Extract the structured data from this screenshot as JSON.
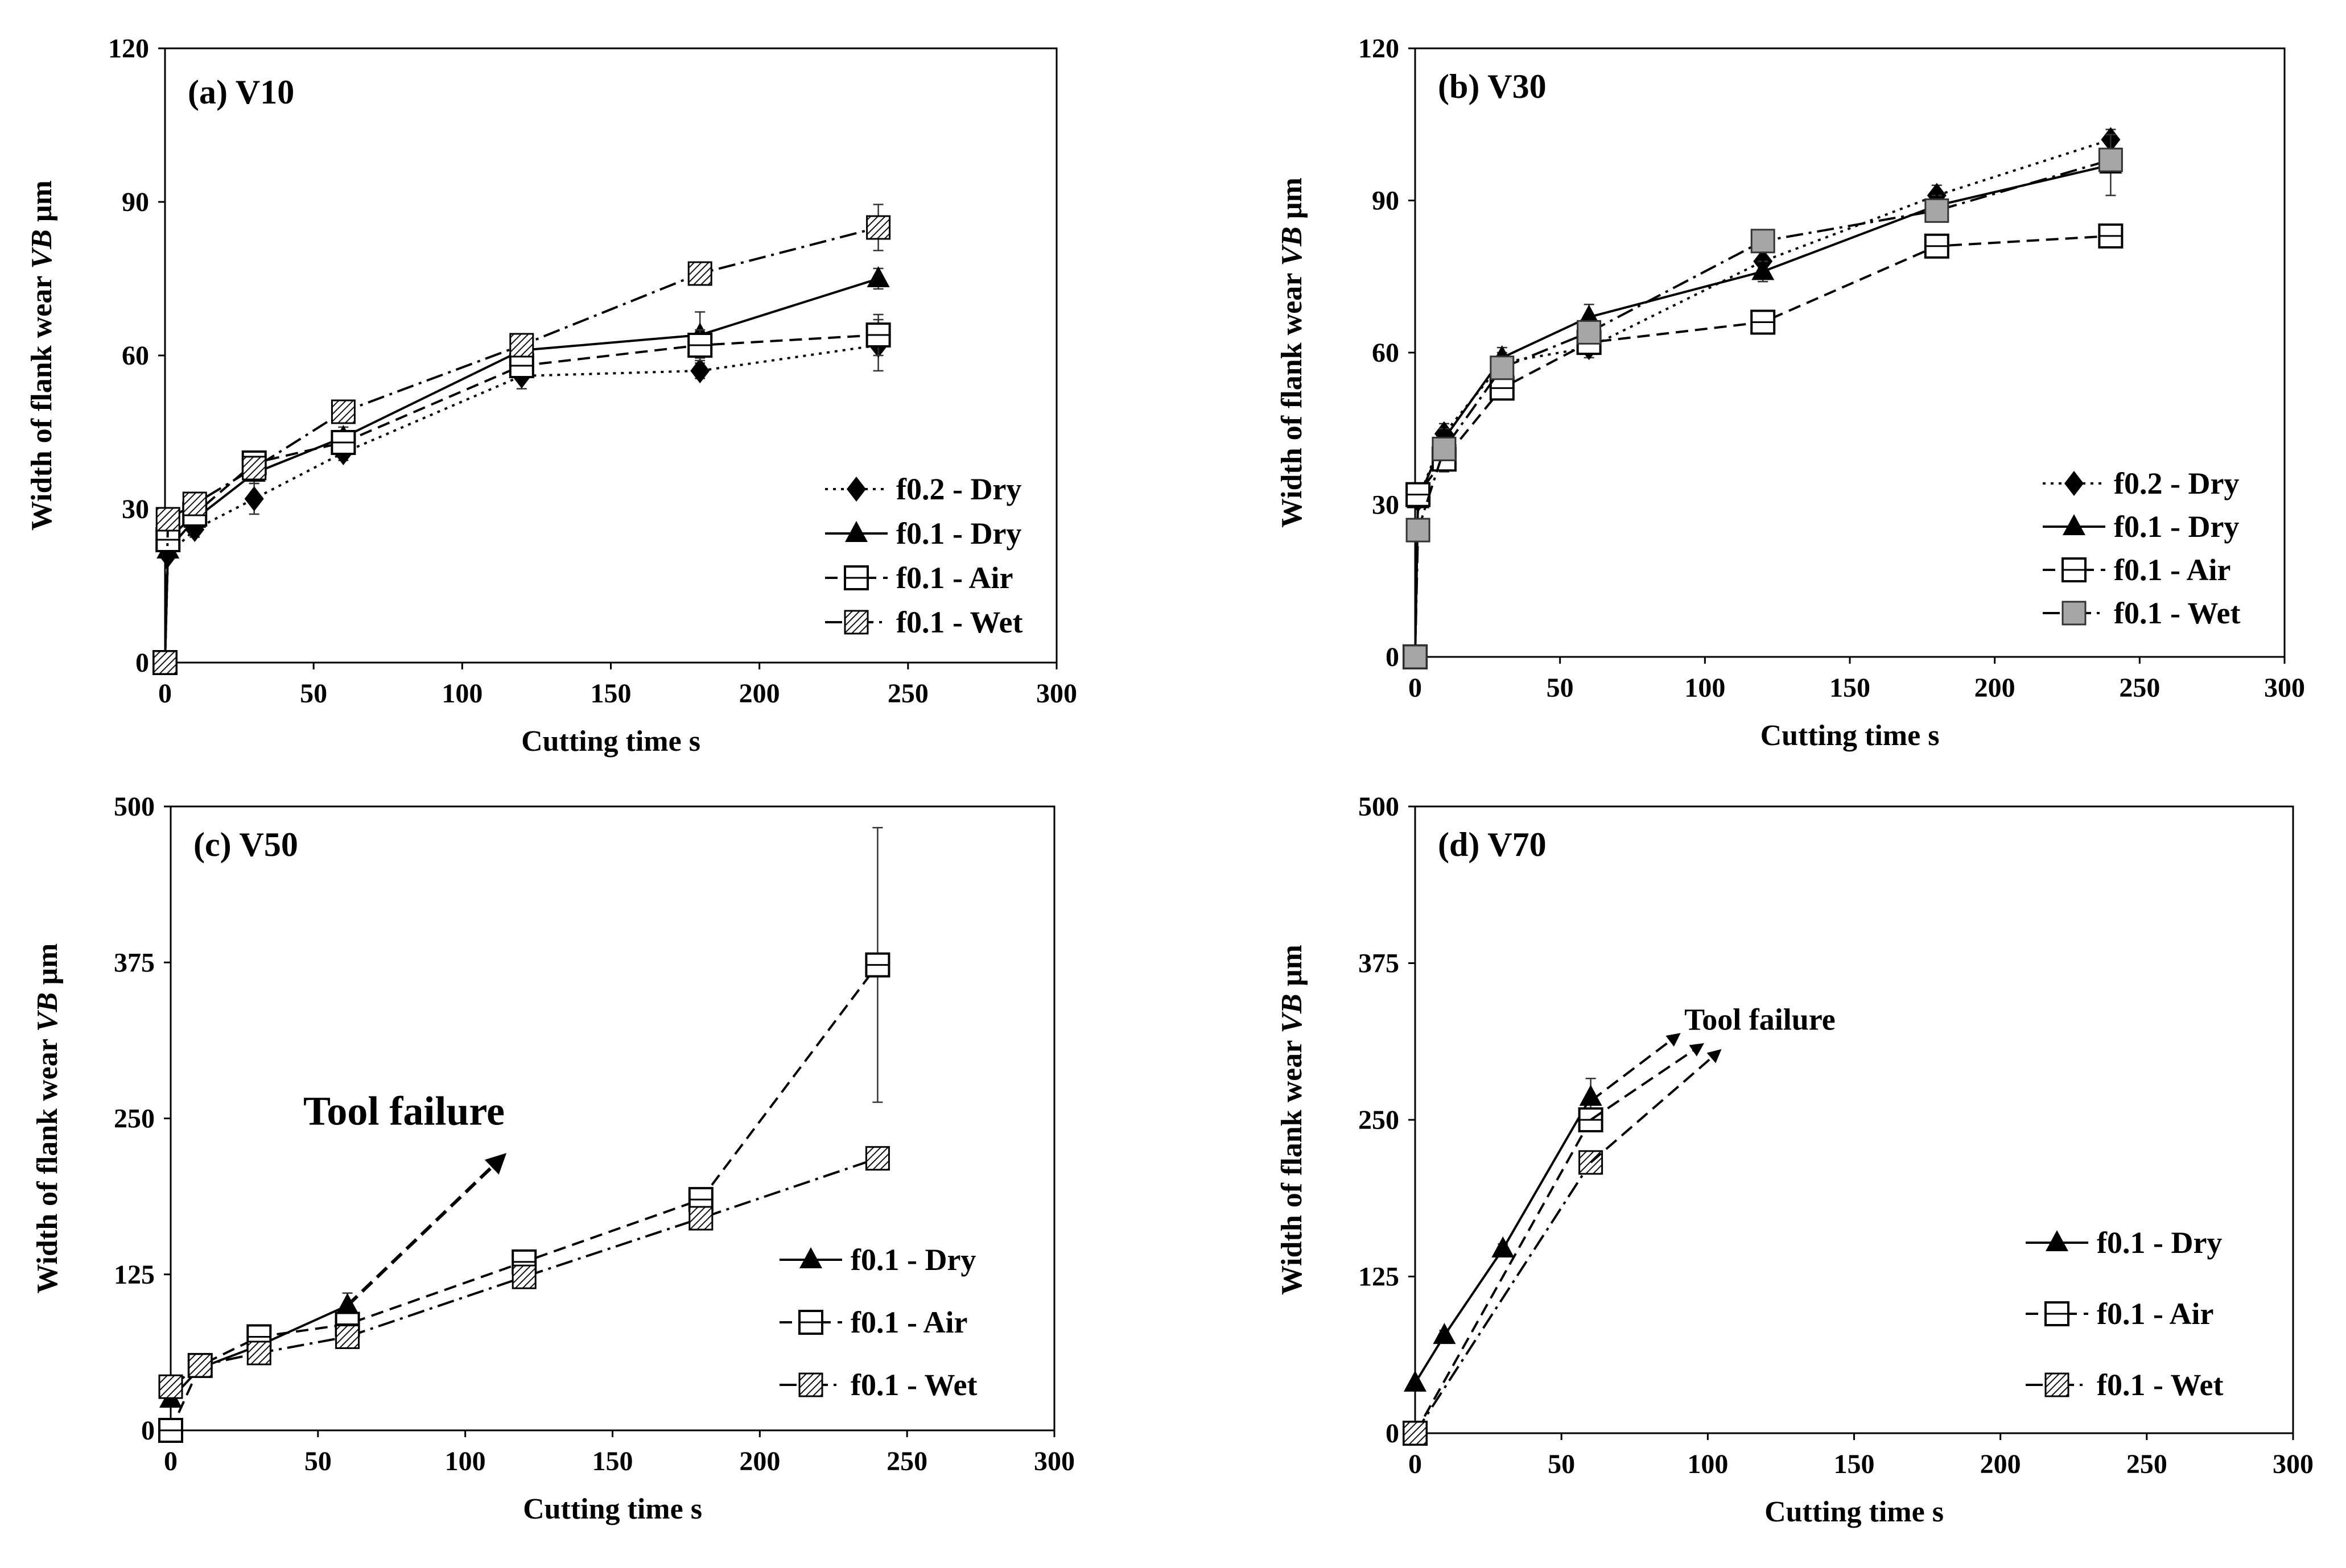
{
  "chart_data": [
    {
      "type": "line",
      "title": "(a) V10",
      "xlabel": "Cutting time s",
      "ylabel_prefix": "Width of flank wear ",
      "ylabel_italic": "VB",
      "ylabel_suffix": " µm",
      "xlim": [
        0,
        300
      ],
      "ylim": [
        0,
        120
      ],
      "xticks": [
        0,
        50,
        100,
        150,
        200,
        250,
        300
      ],
      "yticks": [
        0,
        30,
        60,
        90,
        120
      ],
      "grid": false,
      "legend_position": "right-lower",
      "series": [
        {
          "name": "f0.2 - Dry",
          "marker": "diamond",
          "dash": "dotted",
          "x": [
            0,
            1,
            10,
            30,
            60,
            120,
            180,
            240
          ],
          "y": [
            0,
            21,
            26,
            32,
            41,
            56,
            57,
            62
          ],
          "err": [
            0,
            0,
            1.5,
            3,
            1.5,
            2.5,
            1.5,
            5
          ]
        },
        {
          "name": "f0.1 - Dry",
          "marker": "triangle",
          "dash": "solid",
          "x": [
            0,
            1,
            10,
            30,
            60,
            120,
            180,
            240
          ],
          "y": [
            0,
            22,
            28,
            37,
            44,
            61,
            64,
            75
          ],
          "err": [
            0,
            0,
            1.5,
            2,
            2,
            1.5,
            4.5,
            2
          ]
        },
        {
          "name": "f0.1 - Air",
          "marker": "square-open",
          "dash": "dashed",
          "x": [
            0,
            1,
            10,
            30,
            60,
            120,
            180,
            240
          ],
          "y": [
            0,
            24,
            29,
            39,
            43,
            58,
            62,
            64
          ],
          "err": [
            0,
            0,
            1.5,
            2,
            2,
            1.5,
            3,
            4
          ]
        },
        {
          "name": "f0.1 - Wet",
          "marker": "square-hatched",
          "dash": "dashdot",
          "x": [
            0,
            1,
            10,
            30,
            60,
            120,
            180,
            240
          ],
          "y": [
            0,
            28,
            31,
            38,
            49,
            62,
            76,
            85
          ],
          "err": [
            0,
            0,
            1,
            1.5,
            1.5,
            1.5,
            1.5,
            4.5
          ]
        }
      ]
    },
    {
      "type": "line",
      "title": "(b) V30",
      "xlabel": "Cutting time s",
      "ylabel_prefix": "Width of flank wear ",
      "ylabel_italic": "VB",
      "ylabel_suffix": " µm",
      "xlim": [
        0,
        300
      ],
      "ylim": [
        0,
        120
      ],
      "xticks": [
        0,
        50,
        100,
        150,
        200,
        250,
        300
      ],
      "yticks": [
        0,
        30,
        60,
        90,
        120
      ],
      "grid": false,
      "legend_position": "right-lower",
      "series": [
        {
          "name": "f0.2 - Dry",
          "marker": "diamond",
          "dash": "dotted",
          "x": [
            0,
            1,
            10,
            30,
            60,
            120,
            180,
            240
          ],
          "y": [
            0,
            31,
            44,
            58,
            61,
            78,
            91,
            102
          ],
          "err": [
            0,
            0,
            2,
            2,
            2,
            2,
            2,
            2
          ]
        },
        {
          "name": "f0.1 - Dry",
          "marker": "triangle",
          "dash": "solid",
          "x": [
            0,
            1,
            10,
            30,
            60,
            120,
            180,
            240
          ],
          "y": [
            0,
            31,
            43,
            59,
            67,
            76,
            89,
            97
          ],
          "err": [
            0,
            0,
            2,
            2,
            2.5,
            2,
            2,
            6
          ]
        },
        {
          "name": "f0.1 - Air",
          "marker": "square-open",
          "dash": "dashed",
          "x": [
            0,
            1,
            10,
            30,
            60,
            120,
            180,
            240
          ],
          "y": [
            0,
            32,
            39,
            53,
            62,
            66,
            81,
            83
          ],
          "err": [
            0,
            0,
            2.5,
            2,
            2,
            1.5,
            1.5,
            1.5
          ]
        },
        {
          "name": "f0.1 - Wet",
          "marker": "square-gray",
          "dash": "dashdot",
          "x": [
            0,
            1,
            10,
            30,
            60,
            120,
            180,
            240
          ],
          "y": [
            0,
            25,
            41,
            57,
            64,
            82,
            88,
            98
          ],
          "err": [
            0,
            0,
            2,
            2,
            2,
            2,
            2,
            2
          ]
        }
      ]
    },
    {
      "type": "line",
      "title": "(c) V50",
      "xlabel": "Cutting time s",
      "ylabel_prefix": "Width of flank wear ",
      "ylabel_italic": "VB",
      "ylabel_suffix": " µm",
      "xlim": [
        0,
        300
      ],
      "ylim": [
        0,
        500
      ],
      "xticks": [
        0,
        50,
        100,
        150,
        200,
        250,
        300
      ],
      "yticks": [
        0,
        125,
        250,
        375,
        500
      ],
      "grid": false,
      "legend_position": "right-lower",
      "annotations": [
        {
          "text": "Tool failure",
          "x": 45,
          "y": 245,
          "size": "large",
          "arrows": [
            {
              "from": [
                60,
                100
              ],
              "to": [
                113,
                220
              ]
            }
          ]
        }
      ],
      "series": [
        {
          "name": "f0.1 - Dry",
          "marker": "triangle",
          "dash": "solid",
          "x": [
            0,
            10,
            30,
            60
          ],
          "y": [
            25,
            50,
            68,
            100
          ],
          "err": [
            0,
            4,
            4,
            10
          ]
        },
        {
          "name": "f0.1 - Air",
          "marker": "square-open",
          "dash": "dashed",
          "x": [
            0,
            10,
            30,
            60,
            120,
            180,
            240
          ],
          "y": [
            0,
            52,
            75,
            85,
            135,
            185,
            373
          ],
          "err": [
            0,
            4,
            5,
            5,
            5,
            8,
            110
          ]
        },
        {
          "name": "f0.1 - Wet",
          "marker": "square-hatched",
          "dash": "dashdot",
          "x": [
            0,
            10,
            30,
            60,
            120,
            180,
            240
          ],
          "y": [
            35,
            52,
            62,
            75,
            123,
            170,
            218
          ],
          "err": [
            0,
            4,
            4,
            4,
            5,
            5,
            5
          ]
        }
      ]
    },
    {
      "type": "line",
      "title": "(d) V70",
      "xlabel": "Cutting time s",
      "ylabel_prefix": "Width of flank wear ",
      "ylabel_italic": "VB",
      "ylabel_suffix": " µm",
      "xlim": [
        0,
        300
      ],
      "ylim": [
        0,
        500
      ],
      "xticks": [
        0,
        50,
        100,
        150,
        200,
        250,
        300
      ],
      "yticks": [
        0,
        125,
        250,
        375,
        500
      ],
      "grid": false,
      "legend_position": "right-lower",
      "annotations": [
        {
          "text": "Tool failure",
          "x": 92,
          "y": 322,
          "size": "small",
          "arrows": [
            {
              "from": [
                60,
                265
              ],
              "to": [
                90,
                318
              ]
            },
            {
              "from": [
                60,
                250
              ],
              "to": [
                98,
                310
              ]
            },
            {
              "from": [
                60,
                216
              ],
              "to": [
                104,
                305
              ]
            }
          ]
        }
      ],
      "series": [
        {
          "name": "f0.1 - Dry",
          "marker": "triangle",
          "dash": "solid",
          "x": [
            0,
            10,
            30,
            60
          ],
          "y": [
            40,
            78,
            147,
            268
          ],
          "err": [
            0,
            4,
            4,
            15
          ]
        },
        {
          "name": "f0.1 - Air",
          "marker": "square-open",
          "dash": "dashed",
          "x": [
            0,
            60
          ],
          "y": [
            0,
            250
          ],
          "err": [
            0,
            8
          ]
        },
        {
          "name": "f0.1 - Wet",
          "marker": "square-hatched",
          "dash": "dashdot",
          "x": [
            0,
            60
          ],
          "y": [
            0,
            216
          ],
          "err": [
            0,
            6
          ]
        }
      ]
    }
  ]
}
